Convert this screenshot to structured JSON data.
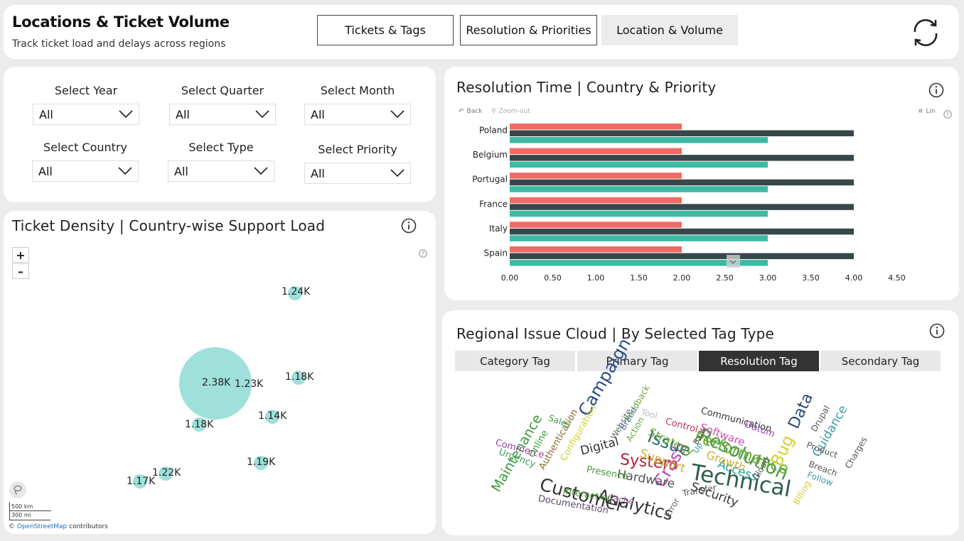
{
  "header": {
    "title": "Locations & Ticket Volume",
    "subtitle": "Track ticket load and delays across regions",
    "nav": [
      "Tickets & Tags",
      "Resolution & Priorities",
      "Location & Volume"
    ],
    "active_nav": "Location & Volume",
    "refresh_icon": "refresh-icon"
  },
  "filters": {
    "year": {
      "label": "Select Year",
      "value": "All"
    },
    "quarter": {
      "label": "Select Quarter",
      "value": "All"
    },
    "month": {
      "label": "Select Month",
      "value": "All"
    },
    "country": {
      "label": "Select Country",
      "value": "All"
    },
    "type": {
      "label": "Select Type",
      "value": "All"
    },
    "priority": {
      "label": "Select Priority",
      "value": "All"
    }
  },
  "map": {
    "title": "Ticket Density | Country-wise Support Load",
    "zoom_in": "+",
    "zoom_out": "–",
    "scale_km": "500 km",
    "scale_mi": "300 mi",
    "attribution_prefix": "©",
    "attribution_link": "OpenStreetMap",
    "attribution_suffix": "contributors",
    "bubble_color": "#9fe0db",
    "bubbles": [
      {
        "label": "1.24K",
        "value": 1240
      },
      {
        "label": "2.38K",
        "value": 2380
      },
      {
        "label": "1.23K",
        "value": 1230
      },
      {
        "label": "1.18K",
        "value": 1180
      },
      {
        "label": "1.18K",
        "value": 1180
      },
      {
        "label": "1.14K",
        "value": 1140
      },
      {
        "label": "1.19K",
        "value": 1190
      },
      {
        "label": "1.22K",
        "value": 1220
      },
      {
        "label": "1.17K",
        "value": 1170
      }
    ]
  },
  "bar_chart": {
    "title": "Resolution Time | Country & Priority",
    "back_label": "Back",
    "zoom_out_label": "Zoom-out",
    "lin_label": "Lin"
  },
  "chart_data": {
    "type": "bar",
    "orientation": "horizontal",
    "categories": [
      "Poland",
      "Belgium",
      "Portugal",
      "France",
      "Italy",
      "Spain"
    ],
    "series": [
      {
        "color": "#ef6b63",
        "values": [
          2.0,
          2.0,
          2.0,
          2.0,
          2.0,
          2.0
        ]
      },
      {
        "color": "#37474a",
        "values": [
          4.0,
          4.0,
          4.0,
          4.0,
          4.0,
          4.0
        ]
      },
      {
        "color": "#3dbaa4",
        "values": [
          3.0,
          3.0,
          3.0,
          3.0,
          3.0,
          3.0
        ]
      }
    ],
    "xticks": [
      "0.00",
      "0.50",
      "1.00",
      "1.50",
      "2.00",
      "2.50",
      "3.00",
      "3.50",
      "4.00",
      "4.50"
    ],
    "xlim": [
      0,
      5.0
    ],
    "grid": false,
    "title": "Resolution Time | Country & Priority"
  },
  "cloud": {
    "title": "Regional Issue Cloud | By Selected Tag Type",
    "tabs": [
      "Category Tag",
      "Primary Tag",
      "Resolution Tag",
      "Secondary Tag"
    ],
    "active_tab": "Resolution Tag",
    "words": [
      {
        "text": "Technical",
        "color": "#2e5f4a"
      },
      {
        "text": "Resolution",
        "color": "#4a9a3c"
      },
      {
        "text": "Customer",
        "color": "#333333"
      },
      {
        "text": "Analytics",
        "color": "#333333"
      },
      {
        "text": "Performance",
        "color": "#6aaa3a"
      },
      {
        "text": "System",
        "color": "#b0203a"
      },
      {
        "text": "Campaign",
        "color": "#2a4a8a"
      },
      {
        "text": "Crash",
        "color": "#c040c0"
      },
      {
        "text": "Issue",
        "color": "#1f6f6f"
      },
      {
        "text": "Bug",
        "color": "#d0d030"
      },
      {
        "text": "Data",
        "color": "#2a4a7a"
      },
      {
        "text": "Maintenance",
        "color": "#3a9a3a"
      },
      {
        "text": "Access",
        "color": "#2aa0a0"
      },
      {
        "text": "Security",
        "color": "#333333"
      },
      {
        "text": "Support",
        "color": "#d0b030"
      },
      {
        "text": "Hardware",
        "color": "#555555"
      },
      {
        "text": "Growth",
        "color": "#d0b030"
      },
      {
        "text": "Digital",
        "color": "#333333"
      },
      {
        "text": "Strategy",
        "color": "#6aaa3a"
      },
      {
        "text": "Software",
        "color": "#d050b0"
      },
      {
        "text": "Guidance",
        "color": "#3aa0a0"
      },
      {
        "text": "Documentation",
        "color": "#5a4a6a"
      },
      {
        "text": "Communication",
        "color": "#333333"
      },
      {
        "text": "Authentication",
        "color": "#8a6a2a"
      },
      {
        "text": "Configuration",
        "color": "#d0d030"
      },
      {
        "text": "Commerce",
        "color": "#a040a0"
      },
      {
        "text": "Online",
        "color": "#3a9a3a"
      },
      {
        "text": "Urgency",
        "color": "#3aa060"
      },
      {
        "text": "Interaction",
        "color": "#4a9a3a"
      },
      {
        "text": "Presence",
        "color": "#4a9a3a"
      },
      {
        "text": "Website",
        "color": "#6a6a6a"
      },
      {
        "text": "Feedback",
        "color": "#6aaa3a"
      },
      {
        "text": "Brand",
        "color": "#5a7ab0"
      },
      {
        "text": "Action",
        "color": "#6aaa3a"
      },
      {
        "text": "Tool",
        "color": "#c0c0c0"
      },
      {
        "text": "Control",
        "color": "#c03060"
      },
      {
        "text": "Datum",
        "color": "#8a4ab0"
      },
      {
        "text": "Drupal",
        "color": "#555555"
      },
      {
        "text": "Product",
        "color": "#555555"
      },
      {
        "text": "Charges",
        "color": "#555555"
      },
      {
        "text": "Breach",
        "color": "#555555"
      },
      {
        "text": "Follow",
        "color": "#3aa0a0"
      },
      {
        "text": "Billing",
        "color": "#d0d030"
      },
      {
        "text": "Cloud",
        "color": "#555555"
      },
      {
        "text": "Transfer",
        "color": "#555555"
      },
      {
        "text": "Error",
        "color": "#6a6a6a"
      },
      {
        "text": "Cache",
        "color": "#b070b0"
      },
      {
        "text": "Sales",
        "color": "#3a9a3a"
      },
      {
        "text": "Up",
        "color": "#3aa0a0"
      },
      {
        "text": "Bank",
        "color": "#555555"
      }
    ]
  }
}
